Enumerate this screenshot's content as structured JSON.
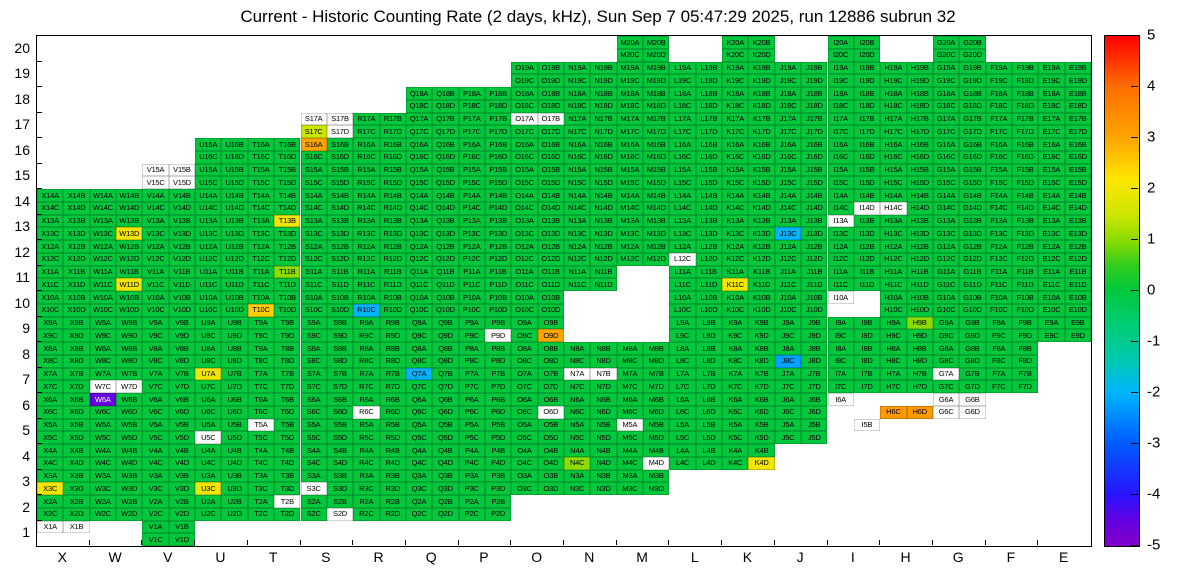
{
  "title": "Current - Historic Counting Rate (2 days, kHz), Sun Sep 7 05:47:29 2025, run 12886 subrun 32",
  "chart_data": {
    "type": "heatmap",
    "unit": "kHz",
    "x_categories": [
      "X",
      "W",
      "V",
      "U",
      "T",
      "S",
      "R",
      "Q",
      "P",
      "O",
      "N",
      "M",
      "L",
      "K",
      "J",
      "I",
      "H",
      "G",
      "F",
      "E"
    ],
    "y_categories": [
      20,
      19,
      18,
      17,
      16,
      15,
      14,
      13,
      12,
      11,
      10,
      9,
      8,
      7,
      6,
      5,
      4,
      3,
      2,
      1
    ],
    "quadrant_labels": [
      "A",
      "B",
      "C",
      "D"
    ],
    "colorbar": {
      "min": -5,
      "max": 5,
      "ticks": [
        5,
        4,
        3,
        2,
        1,
        0,
        -1,
        -2,
        -3,
        -4,
        -5
      ]
    },
    "palette_stops": [
      [
        5,
        "#ff0000"
      ],
      [
        4,
        "#ff6e00"
      ],
      [
        3,
        "#ffa500"
      ],
      [
        2.2,
        "#ffe600"
      ],
      [
        1.5,
        "#cde600"
      ],
      [
        1,
        "#8cdc00"
      ],
      [
        0.5,
        "#32cd1e"
      ],
      [
        0,
        "#00c83c"
      ],
      [
        -0.7,
        "#00cd78"
      ],
      [
        -1.4,
        "#00c8b4"
      ],
      [
        -2,
        "#00b4ff"
      ],
      [
        -3,
        "#005aff"
      ],
      [
        -4,
        "#2814ff"
      ],
      [
        -4.5,
        "#6400e1"
      ],
      [
        -5,
        "#8200c8"
      ]
    ],
    "default_value": 0,
    "rows_present": [
      {
        "row": 20,
        "cols": [
          "M",
          "K",
          "I",
          "G"
        ]
      },
      {
        "row": 19,
        "cols": [
          "O",
          "N",
          "M",
          "L",
          "K",
          "J",
          "I",
          "H",
          "G",
          "F",
          "E"
        ]
      },
      {
        "row": 18,
        "cols": [
          "Q",
          "P",
          "O",
          "N",
          "M",
          "L",
          "K",
          "J",
          "I",
          "H",
          "G",
          "F",
          "E"
        ]
      },
      {
        "row": 17,
        "cols": [
          "S",
          "R",
          "Q",
          "P",
          "O",
          "N",
          "M",
          "L",
          "K",
          "J",
          "I",
          "H",
          "G",
          "F",
          "E"
        ]
      },
      {
        "row": 16,
        "cols": [
          "U",
          "T",
          "S",
          "R",
          "Q",
          "P",
          "O",
          "N",
          "M",
          "L",
          "K",
          "J",
          "I",
          "H",
          "G",
          "F",
          "E"
        ]
      },
      {
        "row": 15,
        "cols": [
          "V",
          "U",
          "T",
          "S",
          "R",
          "Q",
          "P",
          "O",
          "N",
          "M",
          "L",
          "K",
          "J",
          "I",
          "H",
          "G",
          "F",
          "E"
        ]
      },
      {
        "row": 14,
        "cols": [
          "X",
          "W",
          "V",
          "U",
          "T",
          "S",
          "R",
          "Q",
          "P",
          "O",
          "N",
          "M",
          "L",
          "K",
          "J",
          "I",
          "H",
          "G",
          "F",
          "E"
        ]
      },
      {
        "row": 13,
        "cols": [
          "X",
          "W",
          "V",
          "U",
          "T",
          "S",
          "R",
          "Q",
          "P",
          "O",
          "N",
          "M",
          "L",
          "K",
          "J",
          "I",
          "H",
          "G",
          "F",
          "E"
        ]
      },
      {
        "row": 12,
        "cols": [
          "X",
          "W",
          "V",
          "U",
          "T",
          "S",
          "R",
          "Q",
          "P",
          "O",
          "N",
          "M",
          "L",
          "K",
          "J",
          "I",
          "H",
          "G",
          "F",
          "E"
        ]
      },
      {
        "row": 11,
        "cols": [
          "X",
          "W",
          "V",
          "U",
          "T",
          "S",
          "R",
          "Q",
          "P",
          "O",
          "N",
          "L",
          "K",
          "J",
          "I",
          "H",
          "G",
          "F",
          "E"
        ]
      },
      {
        "row": 10,
        "cols": [
          "X",
          "W",
          "V",
          "U",
          "T",
          "S",
          "R",
          "Q",
          "P",
          "O",
          "L",
          "K",
          "J",
          "I",
          "H",
          "G",
          "F",
          "E"
        ]
      },
      {
        "row": 9,
        "cols": [
          "X",
          "W",
          "V",
          "U",
          "T",
          "S",
          "R",
          "Q",
          "P",
          "O",
          "L",
          "K",
          "J",
          "I",
          "H",
          "G",
          "F",
          "E"
        ]
      },
      {
        "row": 8,
        "cols": [
          "X",
          "W",
          "V",
          "U",
          "T",
          "S",
          "R",
          "Q",
          "P",
          "O",
          "N",
          "M",
          "L",
          "K",
          "J",
          "I",
          "H",
          "G",
          "F"
        ]
      },
      {
        "row": 7,
        "cols": [
          "X",
          "W",
          "V",
          "U",
          "T",
          "S",
          "R",
          "Q",
          "P",
          "O",
          "N",
          "M",
          "L",
          "K",
          "J",
          "I",
          "H",
          "G",
          "F"
        ]
      },
      {
        "row": 6,
        "cols": [
          "X",
          "W",
          "V",
          "U",
          "T",
          "S",
          "R",
          "Q",
          "P",
          "O",
          "N",
          "M",
          "L",
          "K",
          "J",
          "I",
          "H",
          "G"
        ]
      },
      {
        "row": 5,
        "cols": [
          "X",
          "W",
          "V",
          "U",
          "T",
          "S",
          "R",
          "Q",
          "P",
          "O",
          "N",
          "M",
          "L",
          "K",
          "J",
          "I"
        ]
      },
      {
        "row": 4,
        "cols": [
          "X",
          "W",
          "V",
          "U",
          "T",
          "S",
          "R",
          "Q",
          "P",
          "O",
          "N",
          "M",
          "L",
          "K"
        ]
      },
      {
        "row": 3,
        "cols": [
          "X",
          "W",
          "V",
          "U",
          "T",
          "S",
          "R",
          "Q",
          "P",
          "O",
          "N",
          "M"
        ]
      },
      {
        "row": 2,
        "cols": [
          "X",
          "W",
          "V",
          "U",
          "T",
          "S",
          "R",
          "Q",
          "P"
        ]
      },
      {
        "row": 1,
        "cols": [
          "X",
          "V"
        ]
      }
    ],
    "white_channels": [
      "S17A",
      "S17B",
      "S17D",
      "O17A",
      "O17B",
      "V15A",
      "V15B",
      "V15C",
      "V15D",
      "I14D",
      "H14C",
      "I13A",
      "L12C",
      "I10A",
      "P9D",
      "N7A",
      "N7B",
      "W7C",
      "W7D",
      "G7A",
      "R6C",
      "O6D",
      "I6A",
      "G6A",
      "G6B",
      "G6C",
      "G6D",
      "T5A",
      "U5C",
      "M5A",
      "I5B",
      "M4D",
      "S3C",
      "T2B",
      "S2D",
      "X1A",
      "X1B"
    ],
    "missing_channels": [
      "I10B",
      "I10C",
      "I10D",
      "I6B",
      "I6C",
      "I6D",
      "H6A",
      "H6B",
      "I5A",
      "I5C",
      "I5D",
      "X1C",
      "X1D"
    ],
    "value_overrides": {
      "S17C": 1.5,
      "S16A": 3,
      "W13D": 2,
      "T13B": 2,
      "J13C": -2,
      "W11D": 2,
      "T11B": 1,
      "K11C": 2,
      "T10C": 2.5,
      "R10C": -2,
      "O9D": 3,
      "H9B": 1,
      "J8C": -2.2,
      "Q7A": -2,
      "U7A": 2,
      "W6A": -4.5,
      "H6C": 3.2,
      "H6D": 3.2,
      "N4C": 1,
      "K4D": 2,
      "X3C": 2,
      "U3C": 2
    }
  }
}
